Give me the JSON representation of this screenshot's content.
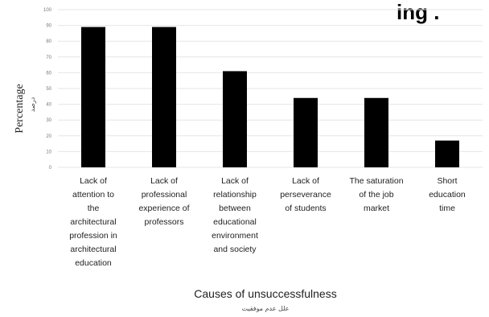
{
  "chart_data": {
    "type": "bar",
    "categories": [
      [
        "Lack of",
        "attention to",
        "the",
        "architectural",
        "profession in",
        "architectural",
        "education"
      ],
      [
        "Lack of",
        "professional",
        "experience of",
        "professors"
      ],
      [
        "Lack of",
        "relationship",
        "between",
        "educational",
        "environment",
        "and society"
      ],
      [
        "Lack of",
        "perseverance",
        "of students"
      ],
      [
        "The saturation",
        "of the job",
        "market"
      ],
      [
        "Short",
        "education",
        "time"
      ]
    ],
    "values": [
      89,
      89,
      61,
      44,
      44,
      17
    ],
    "ylim": [
      0,
      100
    ],
    "yticks": [
      0,
      10,
      20,
      30,
      40,
      50,
      60,
      70,
      80,
      90,
      100
    ],
    "ylabel": "Percentage",
    "ylabel_sub": "درصد",
    "xlabel": "Causes of unsuccessfulness",
    "xlabel_sub": "علل عدم موفقیت",
    "grid": true,
    "bar_color": "#000000",
    "grid_color": "#e6e6e6"
  },
  "page_fragment": "ing ."
}
